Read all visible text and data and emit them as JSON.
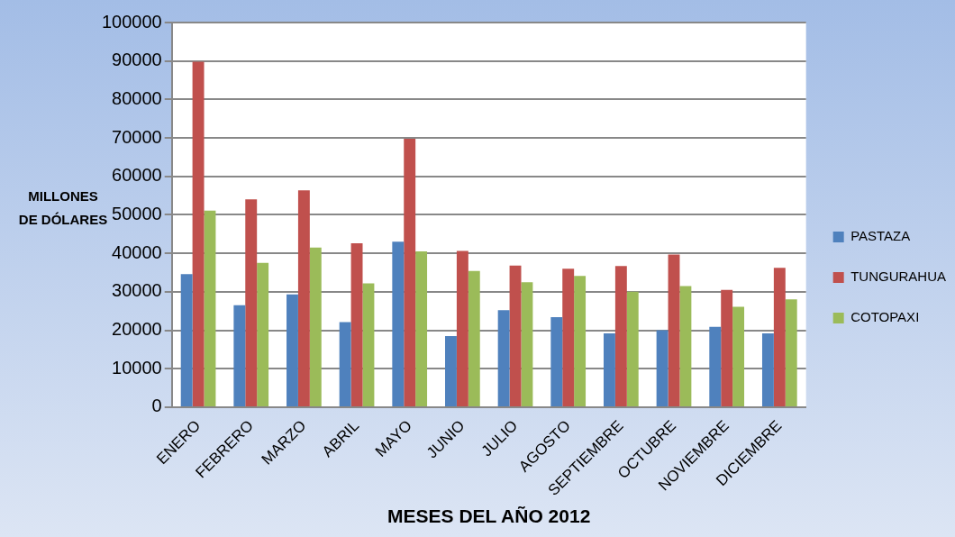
{
  "chart_data": {
    "type": "bar",
    "xlabel": "MESES DEL AÑO 2012",
    "ylabel": "MILLONES DE DÓLARES",
    "categories": [
      "ENERO",
      "FEBRERO",
      "MARZO",
      "ABRIL",
      "MAYO",
      "JUNIO",
      "JULIO",
      "AGOSTO",
      "SEPTIEMBRE",
      "OCTUBRE",
      "NOVIEMBRE",
      "DICIEMBRE"
    ],
    "series": [
      {
        "name": "PASTAZA",
        "color": "#4f81bd",
        "values": [
          34600,
          26500,
          29300,
          22100,
          43000,
          18500,
          25200,
          23400,
          19200,
          20000,
          20900,
          19200
        ]
      },
      {
        "name": "TUNGURAHUA",
        "color": "#c0504d",
        "values": [
          89800,
          54000,
          56400,
          42600,
          69800,
          40600,
          36800,
          36000,
          36700,
          39700,
          30500,
          36200
        ]
      },
      {
        "name": "COTOPAXI",
        "color": "#9bbb59",
        "values": [
          51100,
          37500,
          41500,
          32200,
          40500,
          35400,
          32500,
          34100,
          30000,
          31500,
          26100,
          28000
        ]
      }
    ],
    "ylim": [
      0,
      100000
    ],
    "yticks": [
      0,
      10000,
      20000,
      30000,
      40000,
      50000,
      60000,
      70000,
      80000,
      90000,
      100000
    ],
    "grid": "y",
    "legend": "right"
  }
}
